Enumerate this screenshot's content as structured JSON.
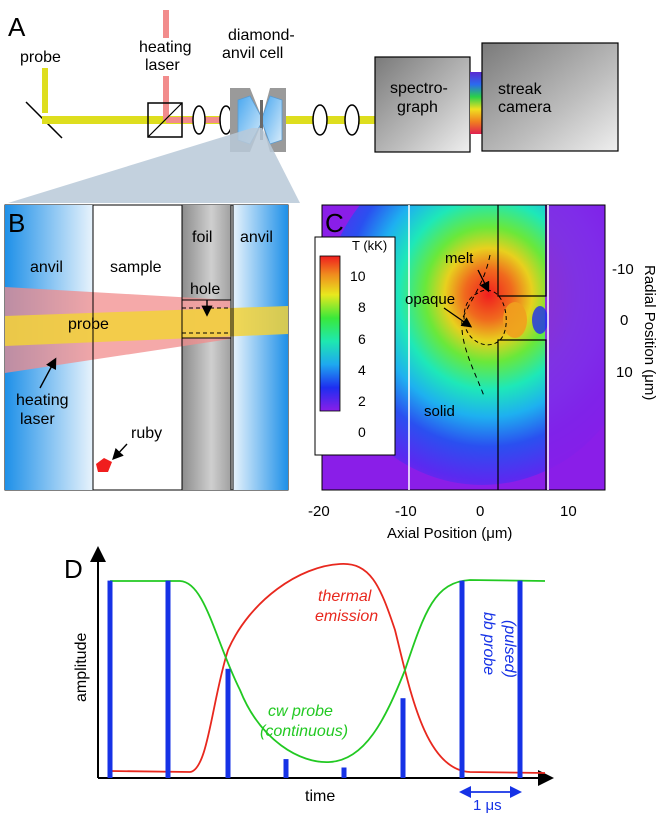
{
  "panelA": {
    "letter": "A",
    "probe": "probe",
    "heating_1": "heating",
    "heating_2": "laser",
    "dac_1": "diamond-",
    "dac_2": "anvil cell",
    "spectro_1": "spectro-",
    "spectro_2": "graph",
    "streak_1": "streak",
    "streak_2": "camera"
  },
  "panelB": {
    "letter": "B",
    "anvil_left": "anvil",
    "sample": "sample",
    "foil": "foil",
    "anvil_right": "anvil",
    "hole": "hole",
    "probe": "probe",
    "heating_1": "heating",
    "heating_2": "laser",
    "ruby": "ruby"
  },
  "panelC": {
    "letter": "C",
    "colorbar_title": "T (kK)",
    "colorbar_ticks": [
      "10",
      "8",
      "6",
      "4",
      "2",
      "0"
    ],
    "melt": "melt",
    "opaque": "opaque",
    "solid": "solid",
    "xlabel": "Axial Position (μm)",
    "xticks": [
      "-20",
      "-10",
      "0",
      "10"
    ],
    "ylabel": "Radial Position (μm)",
    "yticks": [
      "-10",
      "0",
      "10"
    ]
  },
  "panelD": {
    "letter": "D",
    "ylabel": "amplitude",
    "xlabel": "time",
    "thermal_1": "thermal",
    "thermal_2": "emission",
    "cw_1": "cw probe",
    "cw_2": "(continuous)",
    "bb_1": "bb probe",
    "bb_2": "(pulsed)",
    "scale": "1 μs",
    "pulse_heights": [
      0.94,
      0.94,
      0.52,
      0.09,
      0.05,
      0.38,
      0.94,
      0.94
    ]
  },
  "colors": {
    "thermal": "#e8281e",
    "cw": "#22c922",
    "bb": "#1632e6",
    "probe_beam": "#dede1e",
    "heating_beam": "#f28c8c"
  }
}
